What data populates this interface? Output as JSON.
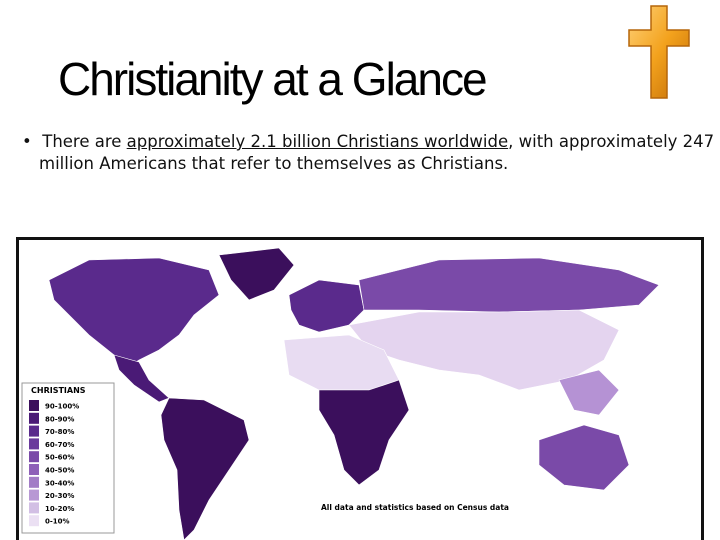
{
  "header": {
    "title": "Christianity at a Glance"
  },
  "bullet": {
    "parts": [
      "There are ",
      "approximately 2.1 billion Christians worldwide",
      ", with approximately 247 million Americans that refer to themselves as Christians."
    ]
  },
  "map": {
    "legend_title": "CHRISTIANS",
    "legend_items": [
      "90-100%",
      "80-90%",
      "70-80%",
      "60-70%",
      "50-60%",
      "40-50%",
      "30-40%",
      "20-30%",
      "10-20%",
      "0-10%"
    ],
    "note": "All data and statistics based on Census data"
  }
}
